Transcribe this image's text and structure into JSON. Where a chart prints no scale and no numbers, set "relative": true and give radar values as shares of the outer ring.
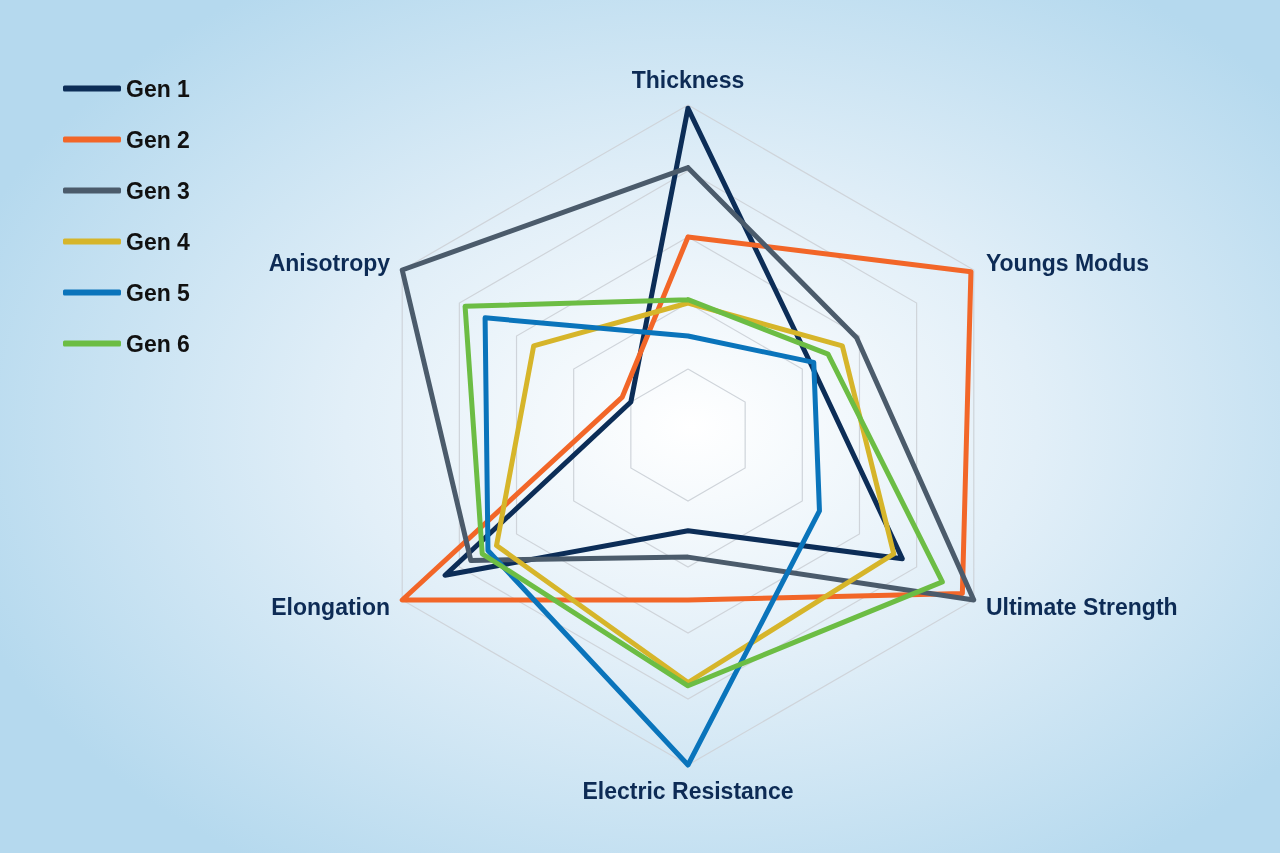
{
  "chart_data": {
    "type": "radar",
    "relative": true,
    "categories": [
      "Thickness",
      "Youngs Modus",
      "Ultimate Strength",
      "Electric Resistance",
      "Elongation",
      "Anisotropy"
    ],
    "series": [
      {
        "name": "Gen 1",
        "color": "#0c2d57",
        "values": [
          0.99,
          0.43,
          0.75,
          0.29,
          0.85,
          0.2
        ]
      },
      {
        "name": "Gen 2",
        "color": "#f26628",
        "values": [
          0.6,
          0.99,
          0.96,
          0.5,
          1.0,
          0.23
        ]
      },
      {
        "name": "Gen 3",
        "color": "#4b5b6b",
        "values": [
          0.81,
          0.59,
          1.0,
          0.37,
          0.76,
          1.0
        ]
      },
      {
        "name": "Gen 4",
        "color": "#d6b52a",
        "values": [
          0.4,
          0.54,
          0.72,
          0.75,
          0.67,
          0.54
        ]
      },
      {
        "name": "Gen 5",
        "color": "#0a74bb",
        "values": [
          0.3,
          0.44,
          0.46,
          1.0,
          0.7,
          0.71
        ]
      },
      {
        "name": "Gen 6",
        "color": "#6cbd44",
        "values": [
          0.41,
          0.49,
          0.89,
          0.76,
          0.72,
          0.78
        ]
      }
    ],
    "grid": true,
    "legend": "top left",
    "marker": "none",
    "line_style": "solid"
  }
}
